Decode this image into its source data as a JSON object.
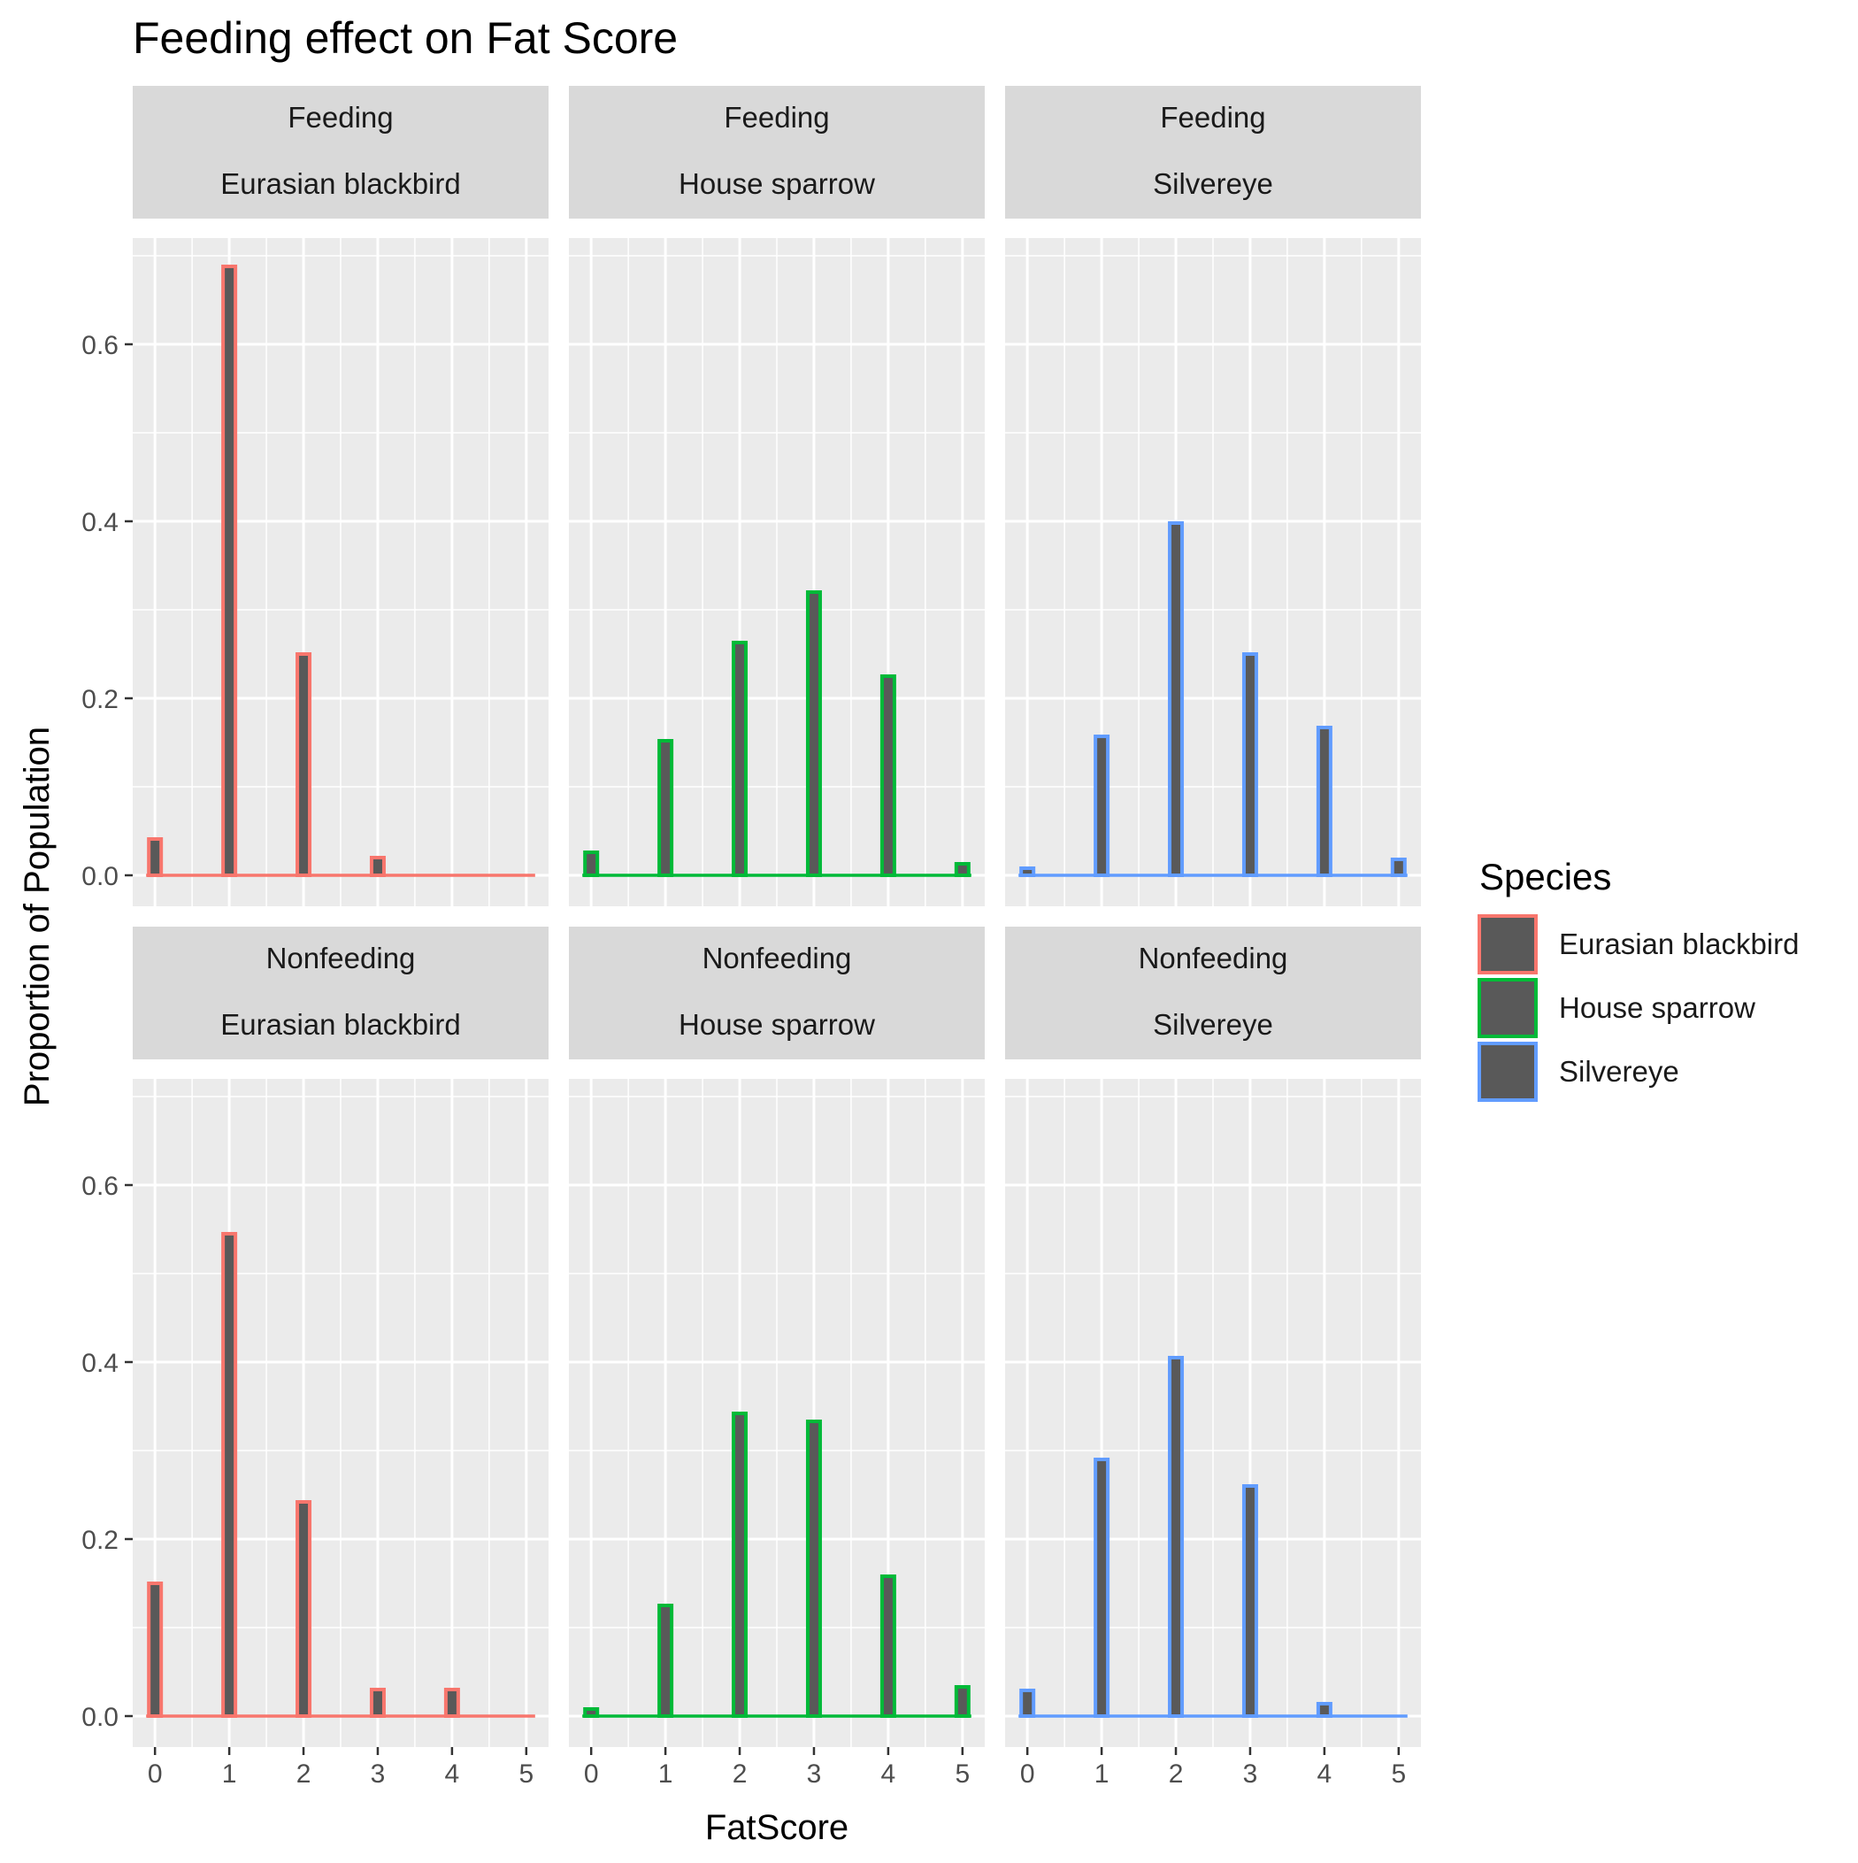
{
  "chart_data": {
    "type": "bar",
    "title": "Feeding effect on Fat Score",
    "xlabel": "FatScore",
    "ylabel": "Proportion of Population",
    "x_ticks": [
      0,
      1,
      2,
      3,
      4,
      5
    ],
    "y_ticks": [
      "0.0",
      "0.2",
      "0.4",
      "0.6"
    ],
    "xlim": [
      -0.3,
      5.3
    ],
    "ylim": [
      -0.035,
      0.72
    ],
    "grid": true,
    "legend": {
      "title": "Species",
      "position": "right",
      "entries": [
        {
          "label": "Eurasian blackbird",
          "color": "#F8766D"
        },
        {
          "label": "House sparrow",
          "color": "#00BA38"
        },
        {
          "label": "Silvereye",
          "color": "#619CFF"
        }
      ]
    },
    "colors": {
      "panel_bg": "#EBEBEB",
      "strip_bg": "#D9D9D9",
      "grid": "#FFFFFF",
      "bar_fill": "#595959",
      "text": "#000000",
      "tick_text": "#4D4D4D"
    },
    "panels": [
      {
        "row": 0,
        "col": 0,
        "strip": [
          "Feeding",
          "Eurasian blackbird"
        ],
        "species": "Eurasian blackbird",
        "color": "#F8766D",
        "values": [
          0.041,
          0.688,
          0.25,
          0.02,
          0.0,
          0.0
        ]
      },
      {
        "row": 0,
        "col": 1,
        "strip": [
          "Feeding",
          "House sparrow"
        ],
        "species": "House sparrow",
        "color": "#00BA38",
        "values": [
          0.026,
          0.152,
          0.263,
          0.32,
          0.225,
          0.013
        ]
      },
      {
        "row": 0,
        "col": 2,
        "strip": [
          "Feeding",
          "Silvereye"
        ],
        "species": "Silvereye",
        "color": "#619CFF",
        "values": [
          0.008,
          0.157,
          0.398,
          0.25,
          0.167,
          0.018
        ]
      },
      {
        "row": 1,
        "col": 0,
        "strip": [
          "Nonfeeding",
          "Eurasian blackbird"
        ],
        "species": "Eurasian blackbird",
        "color": "#F8766D",
        "values": [
          0.15,
          0.545,
          0.242,
          0.03,
          0.03,
          0.0
        ]
      },
      {
        "row": 1,
        "col": 1,
        "strip": [
          "Nonfeeding",
          "House sparrow"
        ],
        "species": "House sparrow",
        "color": "#00BA38",
        "values": [
          0.008,
          0.125,
          0.342,
          0.333,
          0.158,
          0.033
        ]
      },
      {
        "row": 1,
        "col": 2,
        "strip": [
          "Nonfeeding",
          "Silvereye"
        ],
        "species": "Silvereye",
        "color": "#619CFF",
        "values": [
          0.029,
          0.29,
          0.405,
          0.26,
          0.014,
          0.0
        ]
      }
    ]
  }
}
